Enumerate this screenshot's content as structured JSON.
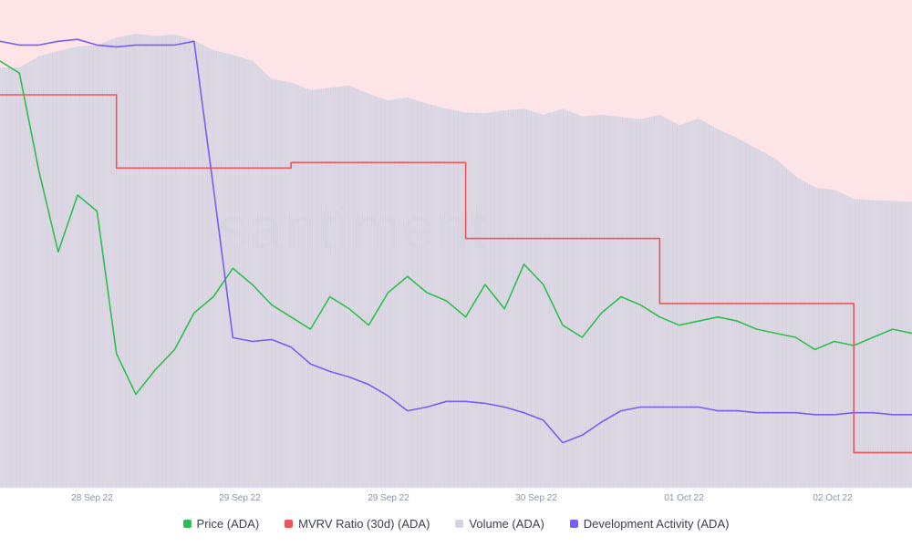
{
  "chart_data": {
    "type": "line",
    "watermark": "santiment",
    "x_ticks": [
      "28 Sep 22",
      "29 Sep 22",
      "29 Sep 22",
      "30 Sep 22",
      "01 Oct 22",
      "02 Oct 22"
    ],
    "x_hours": [
      0,
      3,
      6,
      9,
      12,
      15,
      18,
      21,
      24,
      27,
      30,
      33,
      36,
      39,
      42,
      45,
      48,
      51,
      54,
      57,
      60,
      63,
      66,
      69,
      72,
      75,
      78,
      81,
      84,
      87,
      90,
      93,
      96,
      99,
      102,
      105,
      108,
      111,
      114,
      117,
      120,
      123,
      126,
      129,
      132,
      135,
      138,
      141
    ],
    "series": [
      {
        "name": "Price (ADA)",
        "color": "#2fbf4f",
        "type": "line",
        "axis": "price",
        "values": [
          0.465,
          0.462,
          0.438,
          0.418,
          0.432,
          0.428,
          0.393,
          0.383,
          0.389,
          0.394,
          0.403,
          0.407,
          0.414,
          0.41,
          0.405,
          0.402,
          0.399,
          0.407,
          0.404,
          0.4,
          0.408,
          0.412,
          0.408,
          0.406,
          0.402,
          0.41,
          0.404,
          0.415,
          0.41,
          0.4,
          0.397,
          0.403,
          0.407,
          0.405,
          0.402,
          0.4,
          0.401,
          0.402,
          0.401,
          0.399,
          0.398,
          0.397,
          0.394,
          0.396,
          0.395,
          0.397,
          0.399,
          0.398
        ]
      },
      {
        "name": "MVRV Ratio (30d) (ADA)",
        "color": "#e8585a",
        "type": "step",
        "axis": "mvrv",
        "values": [
          -5.5,
          -5.5,
          -5.5,
          -5.5,
          -5.5,
          -5.5,
          -8.2,
          -8.2,
          -8.2,
          -8.2,
          -8.2,
          -8.2,
          -8.2,
          -8.2,
          -8.2,
          -8.0,
          -8.0,
          -8.0,
          -8.0,
          -8.0,
          -8.0,
          -8.0,
          -8.0,
          -8.0,
          -10.8,
          -10.8,
          -10.8,
          -10.8,
          -10.8,
          -10.8,
          -10.8,
          -10.8,
          -10.8,
          -10.8,
          -13.2,
          -13.2,
          -13.2,
          -13.2,
          -13.2,
          -13.2,
          -13.2,
          -13.2,
          -13.2,
          -13.2,
          -18.7,
          -18.7,
          -18.7,
          -18.7
        ]
      },
      {
        "name": "Volume (ADA)",
        "color": "#d2d4e3",
        "type": "area",
        "axis": "volume",
        "values": [
          560,
          560,
          575,
          582,
          588,
          590,
          600,
          605,
          602,
          604,
          596,
          583,
          577,
          569,
          545,
          540,
          530,
          533,
          536,
          525,
          516,
          520,
          512,
          505,
          500,
          499,
          503,
          505,
          497,
          505,
          495,
          497,
          494,
          491,
          497,
          483,
          492,
          478,
          466,
          452,
          438,
          415,
          400,
          397,
          385,
          383,
          382,
          381
        ]
      },
      {
        "name": "Development Activity (ADA)",
        "color": "#7b5cf0",
        "type": "line",
        "axis": "dev",
        "values": [
          29.8,
          29.6,
          29.6,
          29.8,
          29.9,
          29.6,
          29.5,
          29.6,
          29.6,
          29.6,
          29.8,
          22.0,
          14.0,
          13.8,
          13.9,
          13.5,
          12.6,
          12.2,
          11.9,
          11.5,
          10.9,
          10.1,
          10.3,
          10.6,
          10.6,
          10.5,
          10.3,
          10.0,
          9.6,
          8.4,
          8.8,
          9.5,
          10.1,
          10.3,
          10.3,
          10.3,
          10.3,
          10.1,
          10.1,
          10.0,
          10.0,
          10.0,
          9.9,
          9.9,
          10.0,
          10.0,
          9.9,
          9.9
        ]
      }
    ],
    "axes": {
      "price_range": [
        0.36,
        0.48
      ],
      "mvrv_range": [
        -20,
        -2
      ],
      "volume_range": [
        0,
        650
      ],
      "dev_range": [
        6,
        32
      ]
    },
    "background_color": "#fde4e6",
    "legend_position": "bottom-center",
    "grid": false
  },
  "legend": [
    {
      "label": "Price (ADA)",
      "color": "#2fbf4f"
    },
    {
      "label": "MVRV Ratio (30d) (ADA)",
      "color": "#e8585a"
    },
    {
      "label": "Volume (ADA)",
      "color": "#d2d4e3"
    },
    {
      "label": "Development Activity (ADA)",
      "color": "#7b5cf0"
    }
  ]
}
